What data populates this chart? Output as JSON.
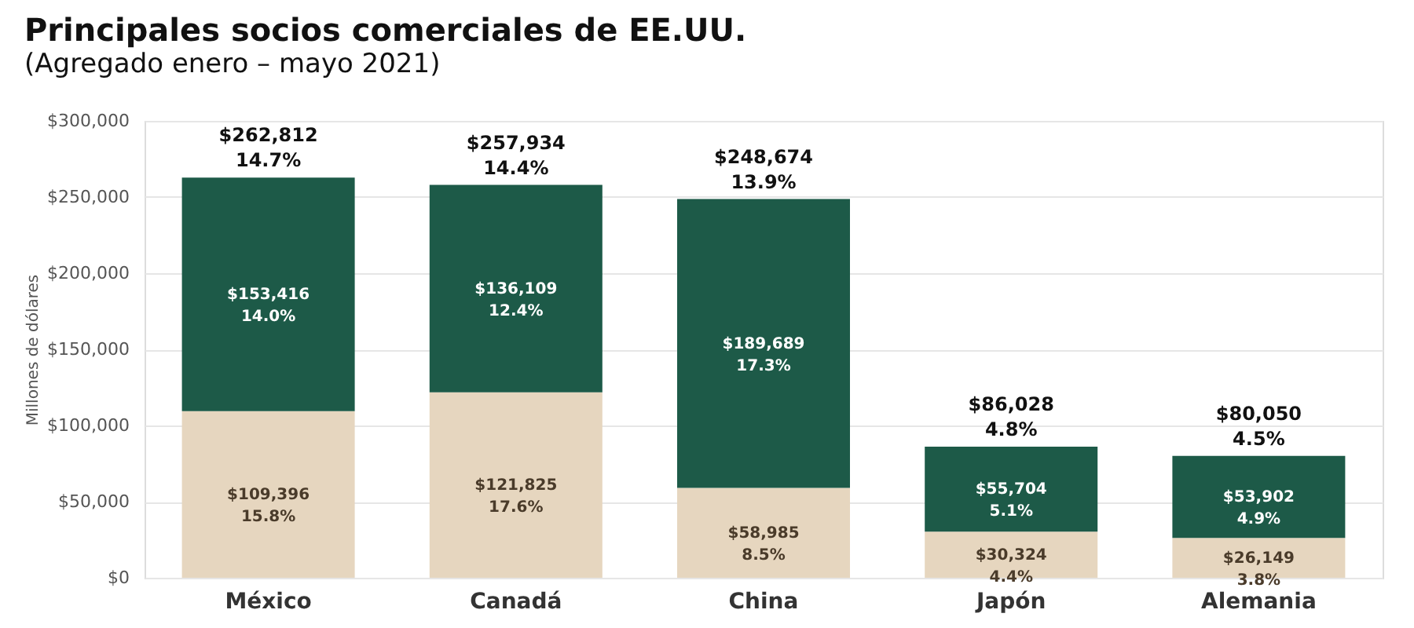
{
  "chart_data": {
    "type": "bar",
    "title": "Principales socios comerciales de EE.UU.",
    "subtitle": "(Agregado enero – mayo 2021)",
    "ylabel": "Millones de dólares",
    "categories": [
      "México",
      "Canadá",
      "China",
      "Japón",
      "Alemania"
    ],
    "stacked": true,
    "series": [
      {
        "color": "#e6d6bf",
        "values": [
          109396,
          121825,
          58985,
          30324,
          26149
        ],
        "value_labels": [
          "$109,396\n15.8%",
          "$121,825\n17.6%",
          "$58,985\n8.5%",
          "$30,324\n4.4%",
          "$26,149\n3.8%"
        ]
      },
      {
        "color": "#1d5a48",
        "values": [
          153416,
          136109,
          189689,
          55704,
          53902
        ],
        "value_labels": [
          "$153,416\n14.0%",
          "$136,109\n12.4%",
          "$189,689\n17.3%",
          "$55,704\n5.1%",
          "$53,902\n4.9%"
        ]
      }
    ],
    "totals": [
      "$262,812\n14.7%",
      "$257,934\n14.4%",
      "$248,674\n13.9%",
      "$86,028\n4.8%",
      "$80,050\n4.5%"
    ],
    "ylim": [
      0,
      300000
    ],
    "yticks": [
      {
        "value": 0,
        "label": "$0"
      },
      {
        "value": 50000,
        "label": "$50,000"
      },
      {
        "value": 100000,
        "label": "$100,000"
      },
      {
        "value": 150000,
        "label": "$150,000"
      },
      {
        "value": 200000,
        "label": "$200,000"
      },
      {
        "value": 250000,
        "label": "$250,000"
      },
      {
        "value": 300000,
        "label": "$300,000"
      }
    ],
    "grid": "y"
  }
}
